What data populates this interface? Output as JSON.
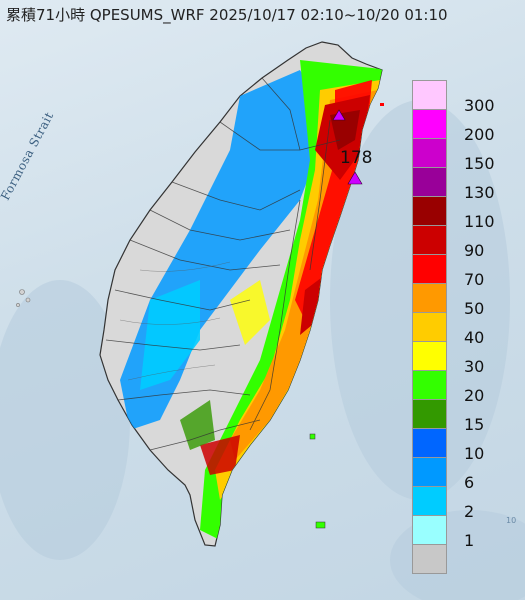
{
  "map": {
    "title": "累積71小時 QPESUMS_WRF 2025/10/17 02:10~10/20 01:10",
    "strait_label": "Formosa Strait",
    "max_label": "178",
    "corner_note": "10"
  },
  "legend": {
    "levels": [
      {
        "label": "300",
        "color": "#ffc8ff"
      },
      {
        "label": "200",
        "color": "#ff00ff"
      },
      {
        "label": "150",
        "color": "#cc00cc"
      },
      {
        "label": "130",
        "color": "#990099"
      },
      {
        "label": "110",
        "color": "#990000"
      },
      {
        "label": "90",
        "color": "#cc0000"
      },
      {
        "label": "70",
        "color": "#ff0000"
      },
      {
        "label": "50",
        "color": "#ff9900"
      },
      {
        "label": "40",
        "color": "#ffcc00"
      },
      {
        "label": "30",
        "color": "#ffff00"
      },
      {
        "label": "20",
        "color": "#33ff00"
      },
      {
        "label": "15",
        "color": "#339900"
      },
      {
        "label": "10",
        "color": "#0066ff"
      },
      {
        "label": "6",
        "color": "#0099ff"
      },
      {
        "label": "2",
        "color": "#00ccff"
      },
      {
        "label": "1",
        "color": "#99ffff"
      },
      {
        "label": "",
        "color": "#c8c8c8"
      }
    ]
  }
}
